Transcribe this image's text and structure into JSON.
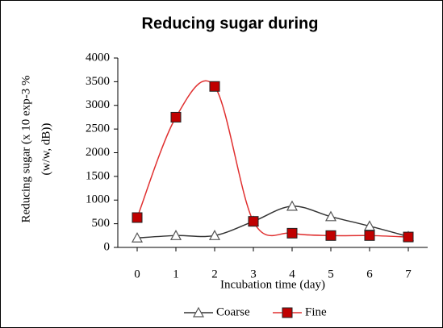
{
  "chart_data": {
    "type": "line",
    "title": "Reducing sugar during",
    "y_label": [
      "Reducing sugar (x 10 exp-3 %",
      "(w/w, dB))"
    ],
    "x_label": "Incubation time (day)",
    "x": [
      0,
      1,
      2,
      3,
      4,
      5,
      6,
      7
    ],
    "xlim": [
      -0.5,
      7.5
    ],
    "xticks": [
      0,
      1,
      2,
      3,
      4,
      5,
      6,
      7
    ],
    "ylim": [
      0,
      4000
    ],
    "yticks": [
      0,
      500,
      1000,
      1500,
      2000,
      2500,
      3000,
      3500,
      4000
    ],
    "series": [
      {
        "name": "Coarse",
        "color": "#333333",
        "marker": "triangle",
        "values": [
          200,
          250,
          250,
          550,
          870,
          650,
          450,
          230
        ]
      },
      {
        "name": "Fine",
        "color": "#e03030",
        "marker": "square",
        "values": [
          630,
          2750,
          3400,
          550,
          300,
          250,
          250,
          220
        ]
      }
    ]
  }
}
